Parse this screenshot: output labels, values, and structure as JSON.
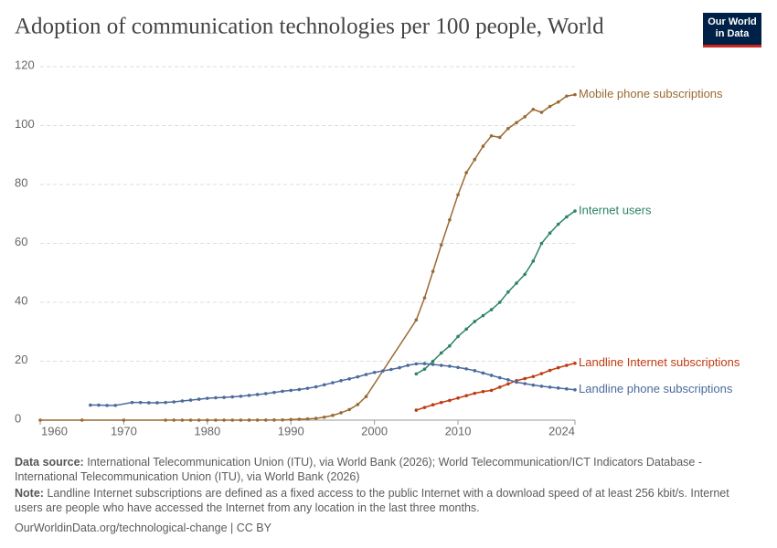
{
  "chart_data": {
    "type": "line",
    "title": "Adoption of communication technologies per 100 people, World",
    "logo": [
      "Our World",
      "in Data"
    ],
    "xlim": [
      1960,
      2024
    ],
    "xticks": [
      1960,
      1970,
      1980,
      1990,
      2000,
      2010,
      2024
    ],
    "ylim": [
      0,
      120
    ],
    "yticks": [
      0,
      20,
      40,
      60,
      80,
      100,
      120
    ],
    "grid": true,
    "series": [
      {
        "name": "Mobile phone subscriptions",
        "color": "#9a6a33",
        "x": [
          1960,
          1965,
          1970,
          1975,
          1976,
          1977,
          1978,
          1979,
          1980,
          1981,
          1982,
          1983,
          1984,
          1985,
          1986,
          1987,
          1988,
          1989,
          1990,
          1991,
          1992,
          1993,
          1994,
          1995,
          1996,
          1997,
          1998,
          1999,
          2005,
          2006,
          2007,
          2008,
          2009,
          2010,
          2011,
          2012,
          2013,
          2014,
          2015,
          2016,
          2017,
          2018,
          2019,
          2020,
          2021,
          2022,
          2023,
          2024
        ],
        "values": [
          0,
          0,
          0,
          0,
          0,
          0,
          0,
          0,
          0,
          0,
          0,
          0,
          0,
          0.01,
          0.02,
          0.03,
          0.05,
          0.08,
          0.2,
          0.3,
          0.4,
          0.6,
          1,
          1.6,
          2.5,
          3.6,
          5.3,
          8,
          34,
          41.5,
          50.5,
          59.5,
          68,
          76.5,
          84,
          88.5,
          93,
          96.5,
          96,
          99,
          101,
          103,
          105.5,
          104.5,
          106.5,
          108,
          110,
          110.5
        ]
      },
      {
        "name": "Internet users",
        "color": "#2c8465",
        "x": [
          2005,
          2006,
          2007,
          2008,
          2009,
          2010,
          2011,
          2012,
          2013,
          2014,
          2015,
          2016,
          2017,
          2018,
          2019,
          2020,
          2021,
          2022,
          2023,
          2024
        ],
        "values": [
          15.7,
          17.3,
          20,
          22.8,
          25.2,
          28.4,
          30.9,
          33.5,
          35.5,
          37.5,
          40,
          43.5,
          46.5,
          49.5,
          54,
          60,
          63.5,
          66.5,
          69,
          71
        ]
      },
      {
        "name": "Landline Internet subscriptions",
        "color": "#be3b10",
        "x": [
          2005,
          2006,
          2007,
          2008,
          2009,
          2010,
          2011,
          2012,
          2013,
          2014,
          2015,
          2016,
          2017,
          2018,
          2019,
          2020,
          2021,
          2022,
          2023,
          2024
        ],
        "values": [
          3.4,
          4.3,
          5.2,
          6,
          6.7,
          7.5,
          8.3,
          9.1,
          9.7,
          10.1,
          11.2,
          12.3,
          13.4,
          14.1,
          14.8,
          15.8,
          16.9,
          17.8,
          18.6,
          19.3
        ]
      },
      {
        "name": "Landline phone subscriptions",
        "color": "#4c6a9c",
        "x": [
          1966,
          1967,
          1968,
          1969,
          1971,
          1972,
          1973,
          1974,
          1975,
          1976,
          1977,
          1978,
          1979,
          1980,
          1981,
          1982,
          1983,
          1984,
          1985,
          1986,
          1987,
          1988,
          1989,
          1990,
          1991,
          1992,
          1993,
          1994,
          1995,
          1996,
          1997,
          1998,
          1999,
          2000,
          2001,
          2002,
          2003,
          2004,
          2005,
          2006,
          2007,
          2008,
          2009,
          2010,
          2011,
          2012,
          2013,
          2014,
          2015,
          2016,
          2017,
          2018,
          2019,
          2020,
          2021,
          2022,
          2023,
          2024
        ],
        "values": [
          5.1,
          5.1,
          5.0,
          5.0,
          6.0,
          6.0,
          5.9,
          5.9,
          6.0,
          6.2,
          6.5,
          6.8,
          7.1,
          7.4,
          7.6,
          7.7,
          7.9,
          8.1,
          8.4,
          8.7,
          9.0,
          9.4,
          9.8,
          10.1,
          10.4,
          10.8,
          11.3,
          12.0,
          12.7,
          13.4,
          14.0,
          14.7,
          15.5,
          16.2,
          16.7,
          17.2,
          17.8,
          18.6,
          19.1,
          19.2,
          18.9,
          18.6,
          18.3,
          17.9,
          17.4,
          16.8,
          16.0,
          15.2,
          14.4,
          13.7,
          12.9,
          12.4,
          11.9,
          11.5,
          11.2,
          10.9,
          10.6,
          10.3
        ]
      }
    ],
    "data_source_label": "Data source:",
    "data_source": "International Telecommunication Union (ITU), via World Bank (2026); World Telecommunication/ICT Indicators Database - International Telecommunication Union (ITU), via World Bank (2026)",
    "note_label": "Note:",
    "note": "Landline Internet subscriptions are defined as a fixed access to the public Internet with a download speed of at least 256 kbit/s. Internet users are people who have accessed the Internet from any location in the last three months.",
    "footer": "OurWorldinData.org/technological-change | CC BY"
  }
}
